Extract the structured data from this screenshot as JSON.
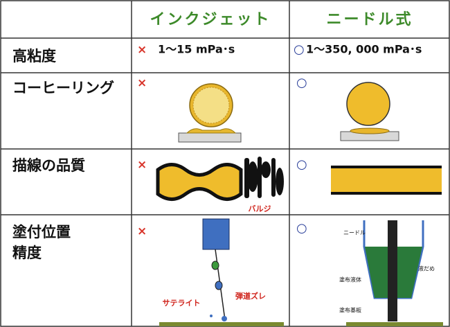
{
  "table": {
    "header": [
      "インクジェット",
      "ニードル式"
    ],
    "rows": [
      {
        "label": [
          "高粘度"
        ],
        "inkjet": {
          "mark": "×",
          "text": "1〜15 mPa･s"
        },
        "needle": {
          "mark": "○",
          "text": "1〜350, 000 mPa･s"
        }
      },
      {
        "label": [
          "コーヒーリング"
        ],
        "inkjet": {
          "mark": "×"
        },
        "needle": {
          "mark": "○"
        }
      },
      {
        "label": [
          "描線の品質"
        ],
        "inkjet": {
          "mark": "×",
          "notes": [
            "バルジ"
          ]
        },
        "needle": {
          "mark": "○"
        }
      },
      {
        "label": [
          "塗付位置",
          "精度"
        ],
        "inkjet": {
          "mark": "×",
          "notes": [
            "サテライト",
            "弾道ズレ"
          ]
        },
        "needle": {
          "mark": "○",
          "notes": [
            "ニードル",
            "塗布液体",
            "液だめ",
            "塗布基板"
          ]
        }
      }
    ]
  }
}
